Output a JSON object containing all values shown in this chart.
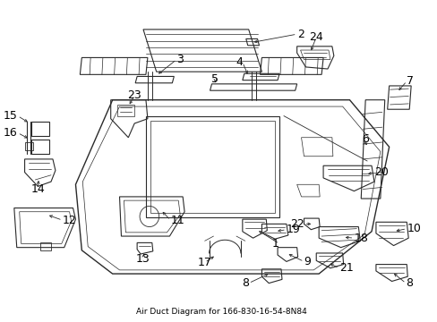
{
  "title": "Air Duct Diagram for 166-830-16-54-8N84",
  "background": "#ffffff",
  "line_color": "#2a2a2a",
  "text_color": "#000000",
  "fig_width": 4.89,
  "fig_height": 3.6,
  "dpi": 100,
  "label_fs": 9,
  "title_fs": 6.5
}
